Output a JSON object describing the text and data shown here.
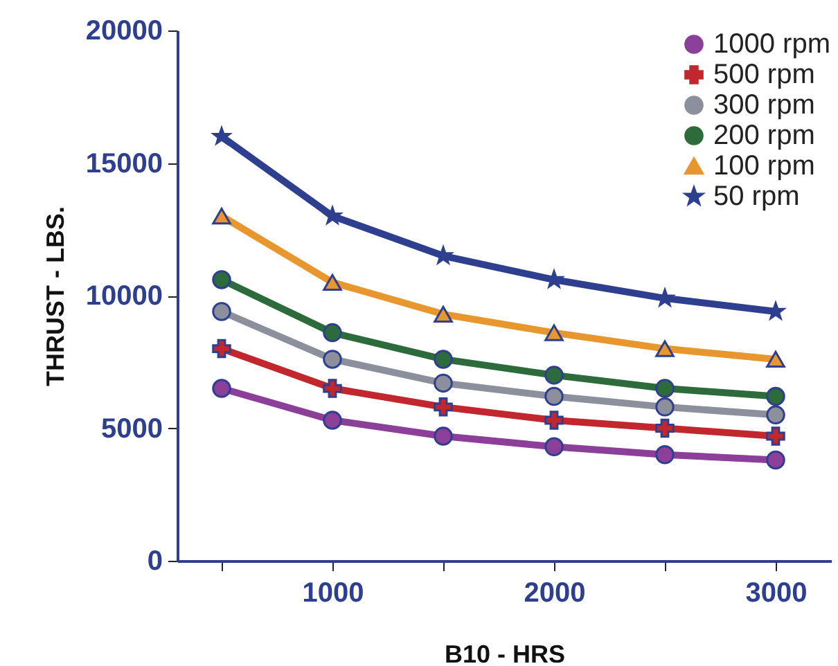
{
  "chart_data": {
    "type": "line",
    "xlabel": "B10 - HRS",
    "ylabel": "THRUST - LBS.",
    "x": [
      500,
      1000,
      1500,
      2000,
      2500,
      3000
    ],
    "xlim": [
      300,
      3250
    ],
    "xticks": [
      {
        "value": 500,
        "label": null
      },
      1000,
      {
        "value": 1500,
        "label": null
      },
      2000,
      {
        "value": 2500,
        "label": null
      },
      3000
    ],
    "ylim": [
      0,
      20000
    ],
    "yticks": [
      0,
      5000,
      10000,
      15000,
      20000
    ],
    "grid": false,
    "legend": "top right",
    "line_style": "solid",
    "series": [
      {
        "name": "1000 rpm",
        "color": "#8b3f98",
        "marker": "circle",
        "values": [
          6500,
          5300,
          4700,
          4300,
          4000,
          3800
        ]
      },
      {
        "name": "500 rpm",
        "color": "#c1272d",
        "marker": "cross",
        "values": [
          8000,
          6500,
          5800,
          5300,
          5000,
          4700
        ]
      },
      {
        "name": "300 rpm",
        "color": "#8c8f9c",
        "marker": "circle",
        "values": [
          9400,
          7600,
          6700,
          6200,
          5800,
          5500
        ]
      },
      {
        "name": "200 rpm",
        "color": "#2e6b3c",
        "marker": "circle",
        "values": [
          10600,
          8600,
          7600,
          7000,
          6500,
          6200
        ]
      },
      {
        "name": "100 rpm",
        "color": "#e8962e",
        "marker": "triangle",
        "values": [
          13000,
          10500,
          9300,
          8600,
          8000,
          7600
        ]
      },
      {
        "name": "50 rpm",
        "color": "#2e3f8f",
        "marker": "star",
        "values": [
          16000,
          13000,
          11500,
          10600,
          9900,
          9400
        ]
      }
    ]
  }
}
